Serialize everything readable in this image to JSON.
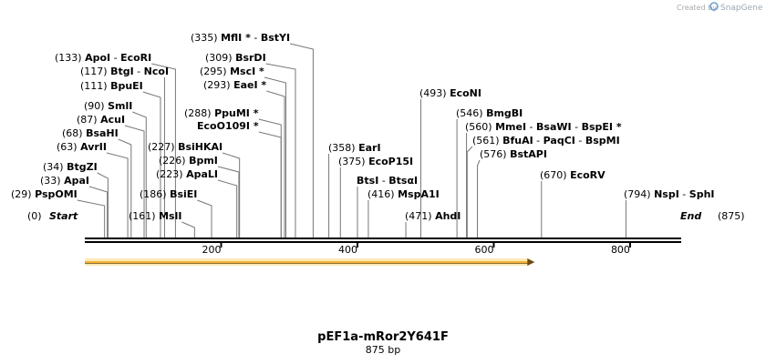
{
  "branding": {
    "prefix": "Created by",
    "name": "SnapGene"
  },
  "map": {
    "title": "pEF1a-mRor2Y641F",
    "subtitle": "875 bp",
    "length": 875,
    "ticks": [
      "200",
      "400",
      "600",
      "800"
    ],
    "start": {
      "pos": "(0)",
      "name": "Start"
    },
    "end": {
      "pos": "(875)",
      "name": "End"
    },
    "feature_color": "#f2b134",
    "features": [
      {
        "start": 0,
        "end": 660,
        "direction": "forward"
      }
    ],
    "sites": [
      {
        "pos": "(29)",
        "bp": 29,
        "names": [
          "PspOMI"
        ]
      },
      {
        "pos": "(33)",
        "bp": 33,
        "names": [
          "ApaI"
        ]
      },
      {
        "pos": "(34)",
        "bp": 34,
        "names": [
          "BtgZI"
        ]
      },
      {
        "pos": "(63)",
        "bp": 63,
        "names": [
          "AvrII"
        ]
      },
      {
        "pos": "(68)",
        "bp": 68,
        "names": [
          "BsaHI"
        ]
      },
      {
        "pos": "(87)",
        "bp": 87,
        "names": [
          "AcuI"
        ]
      },
      {
        "pos": "(90)",
        "bp": 90,
        "names": [
          "SmlI"
        ]
      },
      {
        "pos": "(111)",
        "bp": 111,
        "names": [
          "BpuEI"
        ]
      },
      {
        "pos": "(117)",
        "bp": 117,
        "names": [
          "BtgI",
          "NcoI"
        ]
      },
      {
        "pos": "(133)",
        "bp": 133,
        "names": [
          "ApoI",
          "EcoRI"
        ]
      },
      {
        "pos": "(161)",
        "bp": 161,
        "names": [
          "MslI"
        ]
      },
      {
        "pos": "(186)",
        "bp": 186,
        "names": [
          "BsiEI"
        ]
      },
      {
        "pos": "(223)",
        "bp": 223,
        "names": [
          "ApaLI"
        ]
      },
      {
        "pos": "(226)",
        "bp": 226,
        "names": [
          "BpmI"
        ]
      },
      {
        "pos": "(227)",
        "bp": 227,
        "names": [
          "BsiHKAI"
        ]
      },
      {
        "pos": "(288)",
        "bp": 288,
        "names": [
          "PpuMI *"
        ]
      },
      {
        "pos": "",
        "bp": 288,
        "names": [
          "EcoO109I *"
        ]
      },
      {
        "pos": "(293)",
        "bp": 293,
        "names": [
          "EaeI *"
        ]
      },
      {
        "pos": "(295)",
        "bp": 295,
        "names": [
          "MscI *"
        ]
      },
      {
        "pos": "(309)",
        "bp": 309,
        "names": [
          "BsrDI"
        ]
      },
      {
        "pos": "(335)",
        "bp": 335,
        "names": [
          "MflI *",
          "BstYI"
        ]
      },
      {
        "pos": "(358)",
        "bp": 358,
        "names": [
          "EarI"
        ]
      },
      {
        "pos": "(375)",
        "bp": 375,
        "names": [
          "EcoP15I"
        ]
      },
      {
        "pos": "",
        "bp": 400,
        "names": [
          "BtsI",
          "BtsαI"
        ]
      },
      {
        "pos": "(416)",
        "bp": 416,
        "names": [
          "MspA1I"
        ]
      },
      {
        "pos": "(471)",
        "bp": 471,
        "names": [
          "AhdI"
        ]
      },
      {
        "pos": "(493)",
        "bp": 493,
        "names": [
          "EcoNI"
        ]
      },
      {
        "pos": "(546)",
        "bp": 546,
        "names": [
          "BmgBI"
        ]
      },
      {
        "pos": "(560)",
        "bp": 560,
        "names": [
          "MmeI",
          "BsaWI",
          "BspEI *"
        ]
      },
      {
        "pos": "(561)",
        "bp": 561,
        "names": [
          "BfuAI",
          "PaqCI",
          "BspMI"
        ]
      },
      {
        "pos": "(576)",
        "bp": 576,
        "names": [
          "BstAPI"
        ]
      },
      {
        "pos": "(670)",
        "bp": 670,
        "names": [
          "EcoRV"
        ]
      },
      {
        "pos": "(794)",
        "bp": 794,
        "names": [
          "NspI",
          "SphI"
        ]
      }
    ]
  }
}
